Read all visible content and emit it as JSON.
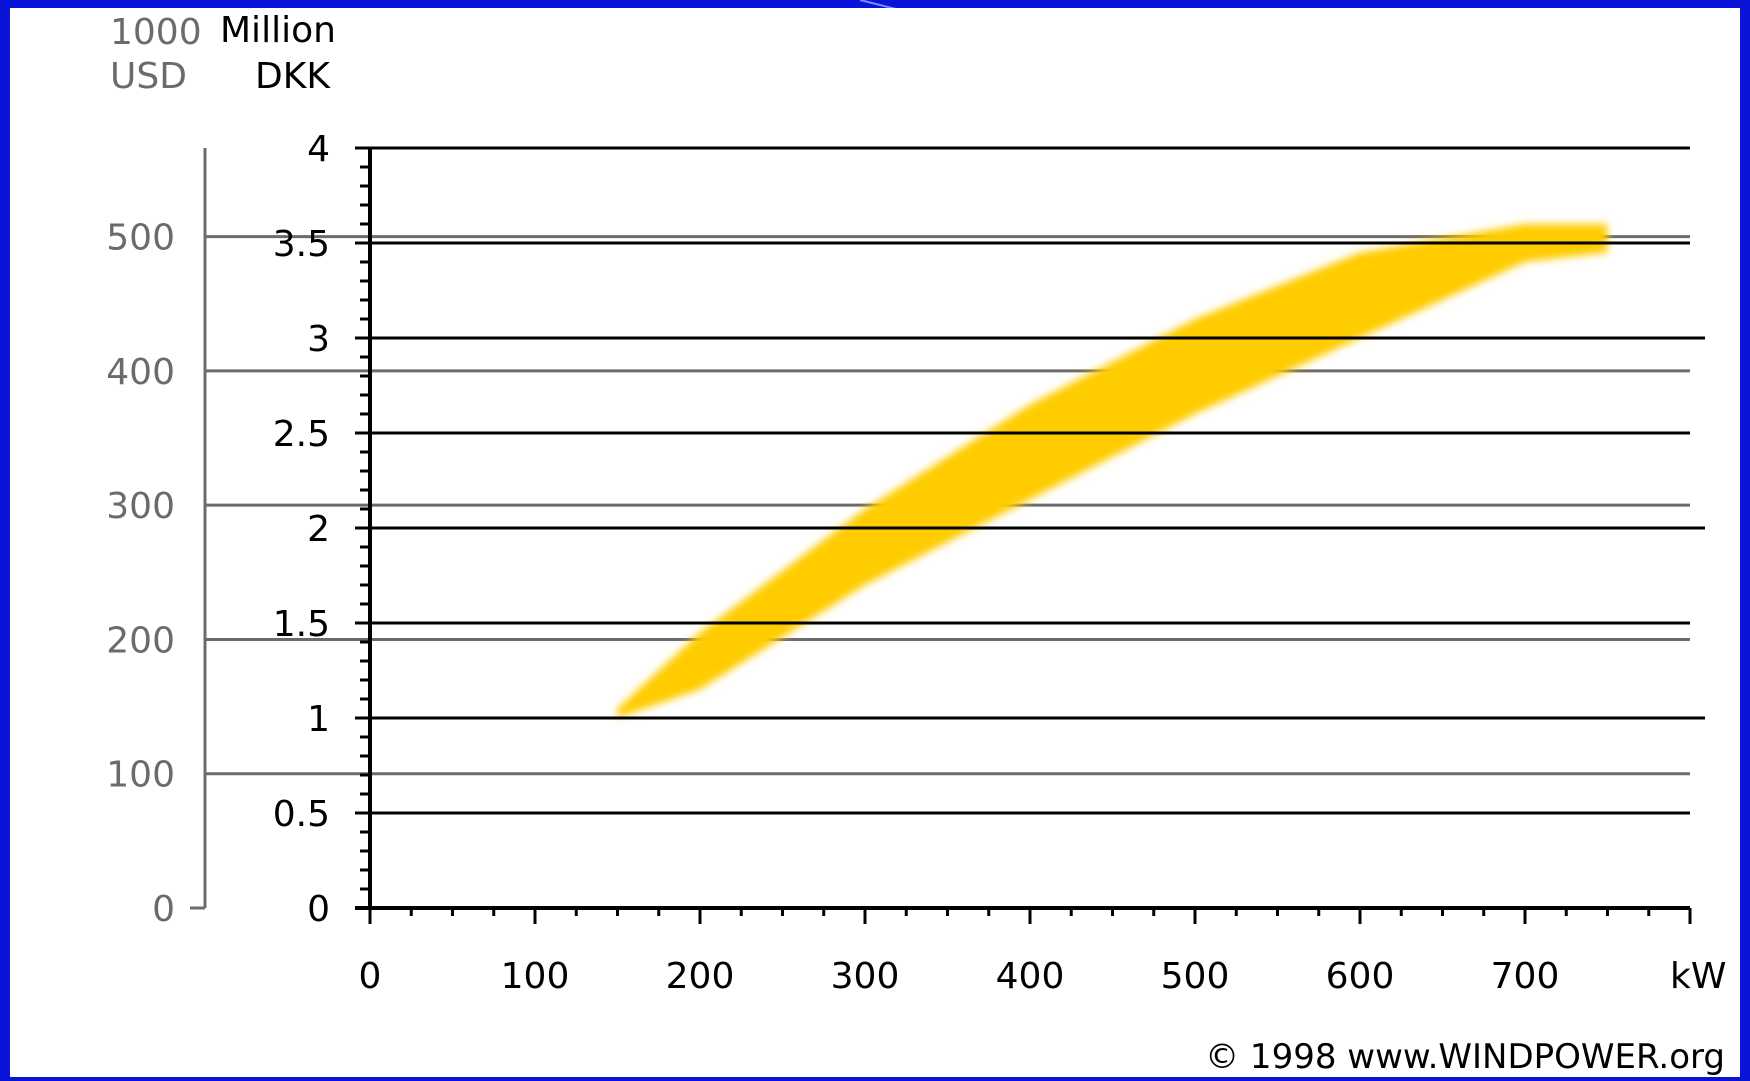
{
  "colors": {
    "slide_background": "#0a14d8",
    "panel": "#ffffff",
    "band_fill": "#ffcc00",
    "dkk_gridline": "#000000",
    "usd_gridline": "#6b6b6b"
  },
  "chart_data": {
    "type": "area",
    "description_of_series": "shaded cost band",
    "x": [
      150,
      200,
      300,
      400,
      500,
      600,
      700,
      750
    ],
    "upper_dkk": [
      1.05,
      1.45,
      2.1,
      2.65,
      3.1,
      3.45,
      3.6,
      3.6
    ],
    "lower_dkk": [
      1.0,
      1.15,
      1.7,
      2.15,
      2.6,
      3.0,
      3.4,
      3.45
    ],
    "units_left_top": "1000",
    "units_left_bottom": "USD",
    "units_right_top": "Million",
    "units_right_bottom": "DKK",
    "x_unit_label": "kW",
    "x_ticks": [
      0,
      100,
      200,
      300,
      400,
      500,
      600,
      700
    ],
    "x_tick_labels": [
      "0",
      "100",
      "200",
      "300",
      "400",
      "500",
      "600",
      "700"
    ],
    "xlim": [
      0,
      800
    ],
    "dkk_ticks": [
      0,
      0.5,
      1,
      1.5,
      2,
      2.5,
      3,
      3.5,
      4
    ],
    "dkk_tick_labels": [
      "0",
      "0.5",
      "1",
      "1.5",
      "2",
      "2.5",
      "3",
      "3.5",
      "4"
    ],
    "dkk_lim": [
      0,
      4
    ],
    "usd_ticks": [
      0,
      100,
      200,
      300,
      400,
      500
    ],
    "usd_tick_labels": [
      "0",
      "100",
      "200",
      "300",
      "400",
      "500"
    ],
    "usd_per_dkk_million": 141.5,
    "grid": true,
    "copyright": "© 1998 www.WINDPOWER.org"
  }
}
